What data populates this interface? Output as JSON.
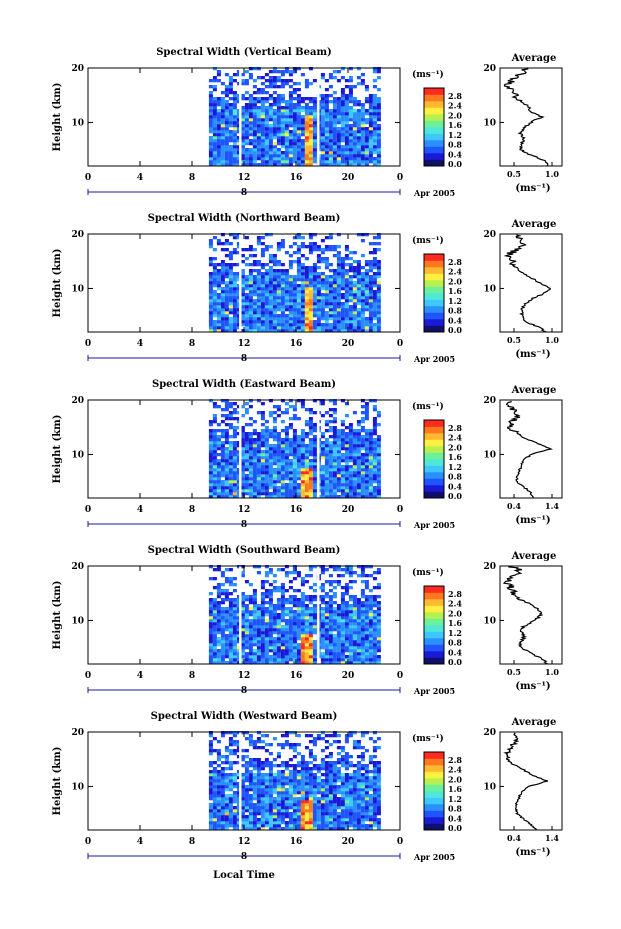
{
  "footer": {
    "xlabel": "Local Time"
  },
  "panels": [
    {
      "title": "Spectral Width (Vertical Beam)",
      "avg_ticks": [
        "0.5",
        "1.0"
      ]
    },
    {
      "title": "Spectral Width (Northward Beam)",
      "avg_ticks": [
        "0.5",
        "1.0"
      ]
    },
    {
      "title": "Spectral Width (Eastward Beam)",
      "avg_ticks": [
        "0.4",
        "1.4"
      ]
    },
    {
      "title": "Spectral Width (Southward Beam)",
      "avg_ticks": [
        "0.5",
        "1.0"
      ]
    },
    {
      "title": "Spectral Width (Westward Beam)",
      "avg_ticks": [
        "0.4",
        "1.4"
      ]
    }
  ],
  "shared": {
    "ylabel": "Height (km)",
    "x_ticks": [
      "0",
      "4",
      "8",
      "12",
      "16",
      "20",
      "0"
    ],
    "y_ticks": [
      "20",
      "10"
    ],
    "date_day": "8",
    "date_label": "Apr 2005",
    "unit_label": "(ms⁻¹)",
    "average_title": "Average",
    "colorbar_ticks": [
      "2.8",
      "2.4",
      "2.0",
      "1.6",
      "1.2",
      "0.8",
      "0.4",
      "0.0"
    ]
  },
  "chart_data": [
    {
      "type": "heatmap",
      "title": "Spectral Width (Vertical Beam)",
      "xlabel": "Local Time",
      "ylabel": "Height (km)",
      "xlim": [
        0,
        24
      ],
      "ylim": [
        2,
        20
      ],
      "colorbar": {
        "label": "(ms⁻¹)",
        "range": [
          0.0,
          2.8
        ]
      },
      "data_hours": [
        9.3,
        22.5
      ],
      "gaps_hours": [
        11.7,
        17.7
      ],
      "high_width": {
        "hours": [
          16.5,
          17.3
        ],
        "height_km": [
          2,
          11
        ],
        "value": 2.8
      },
      "average": {
        "xlabel": "(ms⁻¹)",
        "xlim": [
          0.3,
          1.2
        ],
        "height_km": [
          2,
          3,
          4,
          5,
          6,
          7,
          8,
          9,
          10,
          11,
          12,
          13,
          14,
          15,
          16,
          17,
          18,
          19,
          20
        ],
        "width": [
          1.0,
          0.95,
          0.75,
          0.6,
          0.6,
          0.65,
          0.6,
          0.65,
          0.75,
          0.9,
          0.75,
          0.7,
          0.6,
          0.5,
          0.45,
          0.4,
          0.5,
          0.6,
          0.7
        ]
      }
    },
    {
      "type": "heatmap",
      "title": "Spectral Width (Northward Beam)",
      "xlabel": "Local Time",
      "ylabel": "Height (km)",
      "xlim": [
        0,
        24
      ],
      "ylim": [
        2,
        20
      ],
      "colorbar": {
        "label": "(ms⁻¹)",
        "range": [
          0.0,
          2.8
        ]
      },
      "data_hours": [
        9.3,
        22.5
      ],
      "gaps_hours": [
        11.7
      ],
      "high_width": {
        "hours": [
          16.4,
          17.3
        ],
        "height_km": [
          2,
          10
        ],
        "value": 2.8
      },
      "average": {
        "xlabel": "(ms⁻¹)",
        "xlim": [
          0.2,
          1.2
        ],
        "height_km": [
          2,
          3,
          4,
          5,
          6,
          7,
          8,
          9,
          10,
          11,
          12,
          13,
          14,
          15,
          16,
          17,
          18,
          19,
          20
        ],
        "width": [
          0.95,
          0.8,
          0.6,
          0.55,
          0.55,
          0.6,
          0.7,
          0.9,
          1.0,
          0.85,
          0.7,
          0.55,
          0.45,
          0.4,
          0.3,
          0.45,
          0.6,
          0.55,
          0.45
        ]
      }
    },
    {
      "type": "heatmap",
      "title": "Spectral Width (Eastward Beam)",
      "xlabel": "Local Time",
      "ylabel": "Height (km)",
      "xlim": [
        0,
        24
      ],
      "ylim": [
        2,
        20
      ],
      "colorbar": {
        "label": "(ms⁻¹)",
        "range": [
          0.0,
          2.8
        ]
      },
      "data_hours": [
        9.3,
        22.5
      ],
      "gaps_hours": [
        11.7,
        17.7
      ],
      "high_width": {
        "hours": [
          16.3,
          17.2
        ],
        "height_km": [
          2,
          7
        ],
        "value": 2.8
      },
      "average": {
        "xlabel": "(ms⁻¹)",
        "xlim": [
          0.3,
          1.6
        ],
        "height_km": [
          2,
          3,
          4,
          5,
          6,
          7,
          8,
          9,
          10,
          11,
          12,
          13,
          14,
          15,
          16,
          17,
          18,
          19,
          20
        ],
        "width": [
          1.0,
          0.95,
          0.8,
          0.65,
          0.65,
          0.7,
          0.75,
          0.8,
          0.95,
          1.35,
          1.1,
          0.8,
          0.65,
          0.5,
          0.55,
          0.7,
          0.6,
          0.5,
          0.55
        ]
      }
    },
    {
      "type": "heatmap",
      "title": "Spectral Width (Southward Beam)",
      "xlabel": "Local Time",
      "ylabel": "Height (km)",
      "xlim": [
        0,
        24
      ],
      "ylim": [
        2,
        20
      ],
      "colorbar": {
        "label": "(ms⁻¹)",
        "range": [
          0.0,
          2.8
        ]
      },
      "data_hours": [
        9.3,
        22.5
      ],
      "gaps_hours": [
        11.7,
        17.7
      ],
      "high_width": {
        "hours": [
          16.2,
          17.1
        ],
        "height_km": [
          2,
          7
        ],
        "value": 2.8
      },
      "average": {
        "xlabel": "(ms⁻¹)",
        "xlim": [
          0.3,
          1.2
        ],
        "height_km": [
          2,
          3,
          4,
          5,
          6,
          7,
          8,
          9,
          10,
          11,
          12,
          13,
          14,
          15,
          16,
          17,
          18,
          19,
          20
        ],
        "width": [
          1.0,
          0.9,
          0.75,
          0.6,
          0.6,
          0.65,
          0.6,
          0.65,
          0.8,
          0.9,
          0.85,
          0.75,
          0.55,
          0.5,
          0.45,
          0.4,
          0.5,
          0.6,
          0.45
        ]
      }
    },
    {
      "type": "heatmap",
      "title": "Spectral Width (Westward Beam)",
      "xlabel": "Local Time",
      "ylabel": "Height (km)",
      "xlim": [
        0,
        24
      ],
      "ylim": [
        2,
        20
      ],
      "colorbar": {
        "label": "(ms⁻¹)",
        "range": [
          0.0,
          2.8
        ]
      },
      "data_hours": [
        9.3,
        22.5
      ],
      "gaps_hours": [
        11.7
      ],
      "high_width": {
        "hours": [
          16.3,
          17.2
        ],
        "height_km": [
          2,
          7
        ],
        "value": 2.8
      },
      "average": {
        "xlabel": "(ms⁻¹)",
        "xlim": [
          0.3,
          1.6
        ],
        "height_km": [
          2,
          3,
          4,
          5,
          6,
          7,
          8,
          9,
          10,
          11,
          12,
          13,
          14,
          15,
          16,
          17,
          18,
          19,
          20
        ],
        "width": [
          1.05,
          0.95,
          0.8,
          0.65,
          0.65,
          0.65,
          0.7,
          0.75,
          0.9,
          1.3,
          1.0,
          0.8,
          0.6,
          0.5,
          0.45,
          0.5,
          0.6,
          0.7,
          0.55
        ]
      }
    }
  ]
}
